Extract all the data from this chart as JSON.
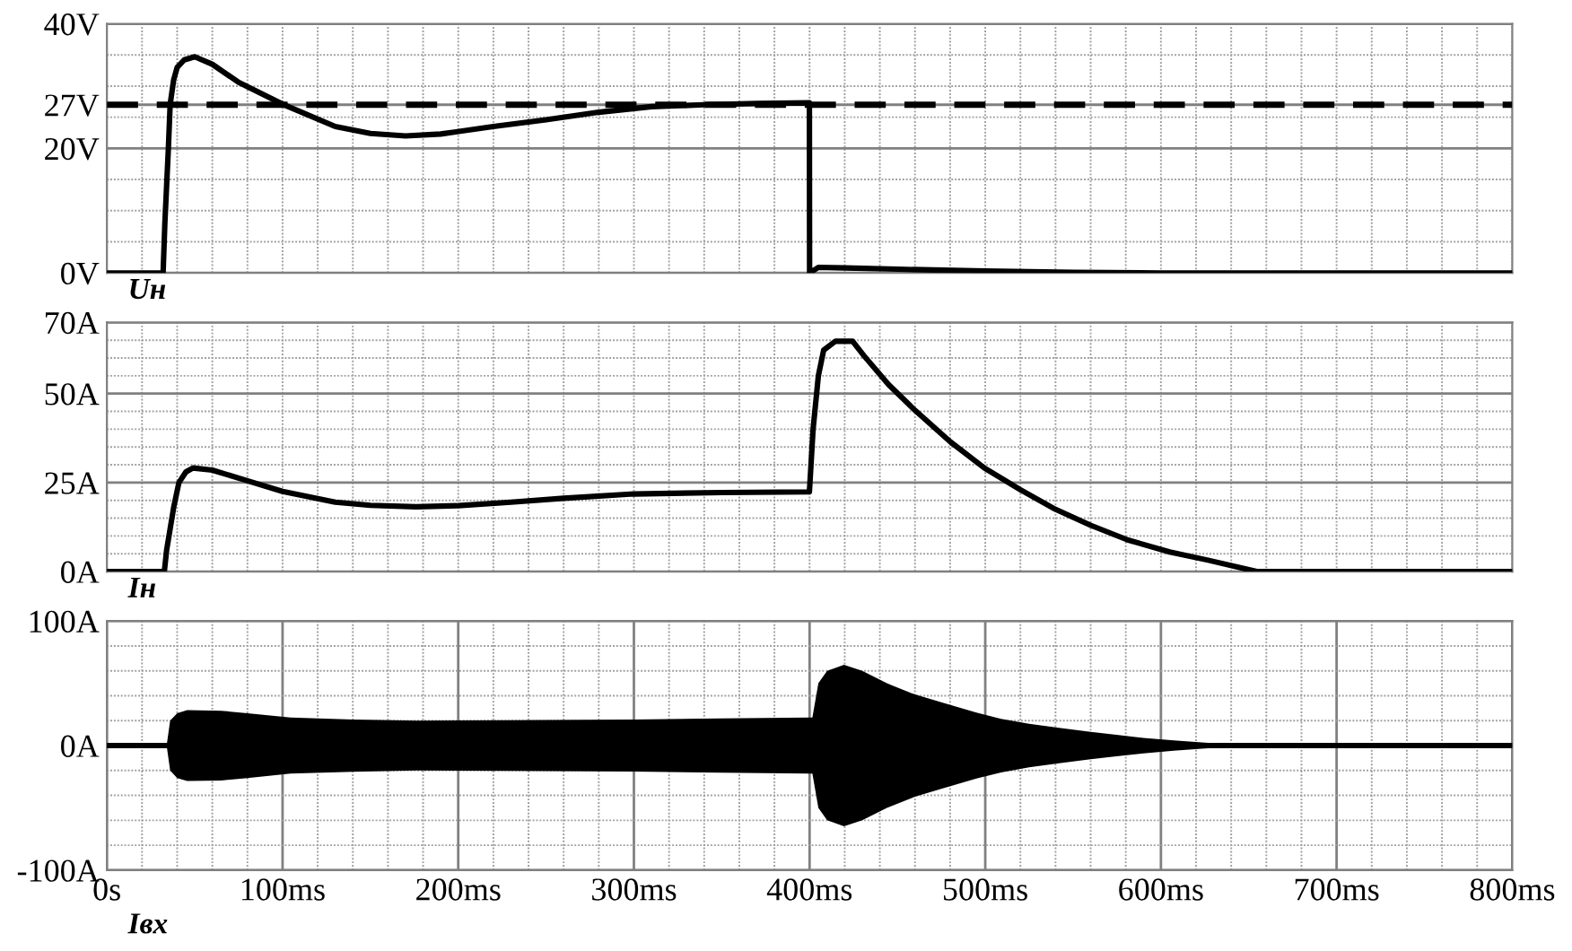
{
  "chart_data": [
    {
      "type": "line",
      "annotations": [
        "Uн"
      ],
      "xlim": [
        0,
        800
      ],
      "ylim": [
        0,
        40
      ],
      "xticks": [
        {
          "value": 0,
          "label": null
        },
        {
          "value": 20,
          "label": null
        },
        {
          "value": 40,
          "label": null
        },
        {
          "value": 60,
          "label": null
        },
        {
          "value": 80,
          "label": null
        },
        {
          "value": 100,
          "label": null
        },
        {
          "value": 120,
          "label": null
        },
        {
          "value": 140,
          "label": null
        },
        {
          "value": 160,
          "label": null
        },
        {
          "value": 180,
          "label": null
        },
        {
          "value": 200,
          "label": null
        },
        {
          "value": 220,
          "label": null
        },
        {
          "value": 240,
          "label": null
        },
        {
          "value": 260,
          "label": null
        },
        {
          "value": 280,
          "label": null
        },
        {
          "value": 300,
          "label": null
        },
        {
          "value": 320,
          "label": null
        },
        {
          "value": 340,
          "label": null
        },
        {
          "value": 360,
          "label": null
        },
        {
          "value": 380,
          "label": null
        },
        {
          "value": 400,
          "label": null
        },
        {
          "value": 420,
          "label": null
        },
        {
          "value": 440,
          "label": null
        },
        {
          "value": 460,
          "label": null
        },
        {
          "value": 480,
          "label": null
        },
        {
          "value": 500,
          "label": null
        },
        {
          "value": 520,
          "label": null
        },
        {
          "value": 540,
          "label": null
        },
        {
          "value": 560,
          "label": null
        },
        {
          "value": 580,
          "label": null
        },
        {
          "value": 600,
          "label": null
        },
        {
          "value": 620,
          "label": null
        },
        {
          "value": 640,
          "label": null
        },
        {
          "value": 660,
          "label": null
        },
        {
          "value": 680,
          "label": null
        },
        {
          "value": 700,
          "label": null
        },
        {
          "value": 720,
          "label": null
        },
        {
          "value": 740,
          "label": null
        },
        {
          "value": 760,
          "label": null
        },
        {
          "value": 780,
          "label": null
        },
        {
          "value": 800,
          "label": null
        }
      ],
      "yticks": [
        {
          "value": 0,
          "label": "0V"
        },
        {
          "value": 5,
          "label": null
        },
        {
          "value": 10,
          "label": null
        },
        {
          "value": 15,
          "label": null
        },
        {
          "value": 20,
          "label": "20V"
        },
        {
          "value": 25,
          "label": null
        },
        {
          "value": 27,
          "label": "27V"
        },
        {
          "value": 30,
          "label": null
        },
        {
          "value": 35,
          "label": null
        },
        {
          "value": 40,
          "label": "40V"
        }
      ],
      "tick_labels": "y",
      "grid": true,
      "ref_lines": [
        {
          "axis": "y",
          "value": 27,
          "color": "#000000",
          "line_style": "dashed"
        }
      ],
      "series": [
        {
          "color": "#000000",
          "x": [
            0,
            32,
            33,
            34,
            35,
            36,
            38,
            40,
            44,
            50,
            60,
            75,
            100,
            130,
            150,
            170,
            190,
            220,
            250,
            280,
            310,
            340,
            370,
            399.9,
            400,
            405,
            420,
            450,
            500,
            550,
            600,
            700,
            800
          ],
          "values": [
            0,
            0,
            8,
            14,
            20,
            27,
            31,
            33,
            34.2,
            34.7,
            33.5,
            30.6,
            27.1,
            23.5,
            22.4,
            22.0,
            22.3,
            23.5,
            24.6,
            25.8,
            26.7,
            27.0,
            27.2,
            27.3,
            0,
            0.9,
            0.8,
            0.6,
            0.3,
            0.1,
            0,
            0,
            0
          ]
        }
      ]
    },
    {
      "type": "line",
      "annotations": [
        "Iн"
      ],
      "xlim": [
        0,
        800
      ],
      "ylim": [
        0,
        70
      ],
      "xticks": [
        {
          "value": 0,
          "label": null
        },
        {
          "value": 20,
          "label": null
        },
        {
          "value": 40,
          "label": null
        },
        {
          "value": 60,
          "label": null
        },
        {
          "value": 80,
          "label": null
        },
        {
          "value": 100,
          "label": null
        },
        {
          "value": 120,
          "label": null
        },
        {
          "value": 140,
          "label": null
        },
        {
          "value": 160,
          "label": null
        },
        {
          "value": 180,
          "label": null
        },
        {
          "value": 200,
          "label": null
        },
        {
          "value": 220,
          "label": null
        },
        {
          "value": 240,
          "label": null
        },
        {
          "value": 260,
          "label": null
        },
        {
          "value": 280,
          "label": null
        },
        {
          "value": 300,
          "label": null
        },
        {
          "value": 320,
          "label": null
        },
        {
          "value": 340,
          "label": null
        },
        {
          "value": 360,
          "label": null
        },
        {
          "value": 380,
          "label": null
        },
        {
          "value": 400,
          "label": null
        },
        {
          "value": 420,
          "label": null
        },
        {
          "value": 440,
          "label": null
        },
        {
          "value": 460,
          "label": null
        },
        {
          "value": 480,
          "label": null
        },
        {
          "value": 500,
          "label": null
        },
        {
          "value": 520,
          "label": null
        },
        {
          "value": 540,
          "label": null
        },
        {
          "value": 560,
          "label": null
        },
        {
          "value": 580,
          "label": null
        },
        {
          "value": 600,
          "label": null
        },
        {
          "value": 620,
          "label": null
        },
        {
          "value": 640,
          "label": null
        },
        {
          "value": 660,
          "label": null
        },
        {
          "value": 680,
          "label": null
        },
        {
          "value": 700,
          "label": null
        },
        {
          "value": 720,
          "label": null
        },
        {
          "value": 740,
          "label": null
        },
        {
          "value": 760,
          "label": null
        },
        {
          "value": 780,
          "label": null
        },
        {
          "value": 800,
          "label": null
        }
      ],
      "yticks": [
        {
          "value": 0,
          "label": "0A"
        },
        {
          "value": 5,
          "label": null
        },
        {
          "value": 10,
          "label": null
        },
        {
          "value": 15,
          "label": null
        },
        {
          "value": 20,
          "label": null
        },
        {
          "value": 25,
          "label": "25A"
        },
        {
          "value": 30,
          "label": null
        },
        {
          "value": 35,
          "label": null
        },
        {
          "value": 40,
          "label": null
        },
        {
          "value": 45,
          "label": null
        },
        {
          "value": 50,
          "label": "50A"
        },
        {
          "value": 55,
          "label": null
        },
        {
          "value": 60,
          "label": null
        },
        {
          "value": 65,
          "label": null
        },
        {
          "value": 70,
          "label": "70A"
        }
      ],
      "tick_labels": "y",
      "grid": true,
      "series": [
        {
          "color": "#000000",
          "x": [
            0,
            32.7,
            34,
            36,
            38,
            41,
            45,
            49,
            60,
            80,
            100,
            130,
            150,
            176,
            200,
            230,
            260,
            300,
            350,
            399.9,
            402,
            405,
            408,
            414.7,
            424.5,
            431,
            445,
            460,
            480,
            499.5,
            520,
            538.7,
            560,
            581,
            605,
            626.8,
            654.6,
            700,
            800
          ],
          "values": [
            0,
            0,
            6,
            12,
            18,
            25,
            28,
            29.1,
            28.5,
            25.5,
            22.5,
            19.5,
            18.6,
            18.2,
            18.5,
            19.5,
            20.6,
            21.8,
            22.2,
            22.4,
            40,
            55,
            62.2,
            64.7,
            64.7,
            60.6,
            52.5,
            45.3,
            36.5,
            29.1,
            23,
            17.8,
            13,
            8.9,
            5.5,
            3.2,
            0,
            0,
            0
          ]
        }
      ]
    },
    {
      "type": "line",
      "annotations": [
        "Iвх"
      ],
      "xlim": [
        0,
        800
      ],
      "ylim": [
        -100,
        100
      ],
      "xticks": [
        {
          "value": 0,
          "label": "0s"
        },
        {
          "value": 20,
          "label": null
        },
        {
          "value": 40,
          "label": null
        },
        {
          "value": 60,
          "label": null
        },
        {
          "value": 80,
          "label": null
        },
        {
          "value": 100,
          "label": "100ms"
        },
        {
          "value": 120,
          "label": null
        },
        {
          "value": 140,
          "label": null
        },
        {
          "value": 160,
          "label": null
        },
        {
          "value": 180,
          "label": null
        },
        {
          "value": 200,
          "label": "200ms"
        },
        {
          "value": 220,
          "label": null
        },
        {
          "value": 240,
          "label": null
        },
        {
          "value": 260,
          "label": null
        },
        {
          "value": 280,
          "label": null
        },
        {
          "value": 300,
          "label": "300ms"
        },
        {
          "value": 320,
          "label": null
        },
        {
          "value": 340,
          "label": null
        },
        {
          "value": 360,
          "label": null
        },
        {
          "value": 380,
          "label": null
        },
        {
          "value": 400,
          "label": "400ms"
        },
        {
          "value": 420,
          "label": null
        },
        {
          "value": 440,
          "label": null
        },
        {
          "value": 460,
          "label": null
        },
        {
          "value": 480,
          "label": null
        },
        {
          "value": 500,
          "label": "500ms"
        },
        {
          "value": 520,
          "label": null
        },
        {
          "value": 540,
          "label": null
        },
        {
          "value": 560,
          "label": null
        },
        {
          "value": 580,
          "label": null
        },
        {
          "value": 600,
          "label": "600ms"
        },
        {
          "value": 620,
          "label": null
        },
        {
          "value": 640,
          "label": null
        },
        {
          "value": 660,
          "label": null
        },
        {
          "value": 680,
          "label": null
        },
        {
          "value": 700,
          "label": "700ms"
        },
        {
          "value": 720,
          "label": null
        },
        {
          "value": 740,
          "label": null
        },
        {
          "value": 760,
          "label": null
        },
        {
          "value": 780,
          "label": null
        },
        {
          "value": 800,
          "label": "800ms"
        }
      ],
      "yticks": [
        {
          "value": -100,
          "label": "-100A"
        },
        {
          "value": -80,
          "label": null
        },
        {
          "value": -60,
          "label": null
        },
        {
          "value": -40,
          "label": null
        },
        {
          "value": -20,
          "label": null
        },
        {
          "value": 0,
          "label": "0A"
        },
        {
          "value": 20,
          "label": null
        },
        {
          "value": 40,
          "label": null
        },
        {
          "value": 60,
          "label": null
        },
        {
          "value": 80,
          "label": null
        },
        {
          "value": 100,
          "label": "100A"
        }
      ],
      "grid": true,
      "series": [
        {
          "color": "#000000",
          "x": [
            0,
            34,
            36,
            40,
            45.7,
            65,
            80,
            104.5,
            140,
            176,
            230,
            300,
            350,
            400,
            401.6,
            405,
            410,
            419.6,
            430,
            444,
            460,
            476.7,
            495,
            509,
            525,
            542,
            560,
            574.6,
            590,
            607.3,
            625,
            640,
            656,
            700,
            800
          ],
          "values": [
            0,
            0,
            0,
            0,
            0,
            0,
            0,
            0,
            0,
            0,
            0,
            0,
            0,
            0,
            0,
            0,
            0,
            0,
            0,
            0,
            0,
            0,
            0,
            0,
            0,
            0,
            0,
            0,
            0,
            0,
            0,
            0,
            0,
            0,
            0
          ],
          "upper": [
            0,
            0,
            20,
            26,
            28.4,
            28,
            26,
            22.5,
            21,
            20,
            20.3,
            20.9,
            21.8,
            22.5,
            22.5,
            50,
            60,
            64.8,
            60,
            50,
            41,
            34,
            26.5,
            21.5,
            17.5,
            14.2,
            11,
            8.7,
            6.2,
            4.1,
            2.3,
            1,
            0,
            0,
            0
          ],
          "lower": [
            0,
            0,
            -20,
            -26,
            -28.4,
            -28,
            -26,
            -22.5,
            -21,
            -20,
            -20.3,
            -20.9,
            -21.8,
            -22.5,
            -22.5,
            -50,
            -60,
            -64.8,
            -60,
            -50,
            -41,
            -34,
            -26.5,
            -21.5,
            -17.5,
            -14.2,
            -11,
            -8.7,
            -6.2,
            -4.1,
            -2.3,
            -1,
            0,
            0,
            0
          ]
        }
      ]
    }
  ]
}
